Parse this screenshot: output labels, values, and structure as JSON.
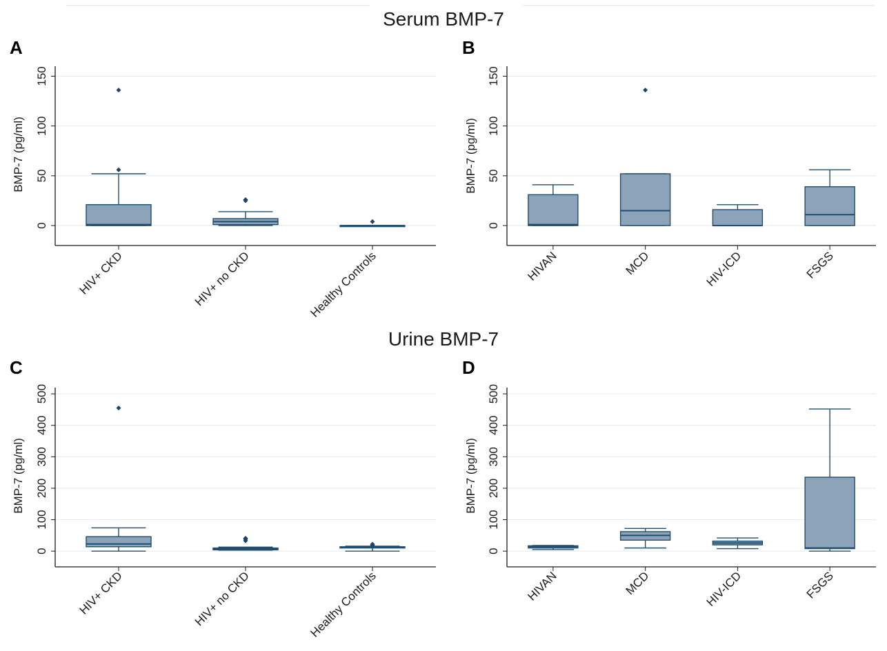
{
  "figure": {
    "section_titles": [
      "Serum BMP-7",
      "Urine BMP-7"
    ]
  },
  "chart_data": [
    {
      "panel": "A",
      "type": "box",
      "ylabel": "BMP-7  (pg/ml)",
      "ylim": [
        -20,
        160
      ],
      "yticks": [
        0,
        50,
        100,
        150
      ],
      "grid": true,
      "categories": [
        "HIV+ CKD",
        "HIV+ no CKD",
        "Healthy Controls"
      ],
      "boxes": [
        {
          "whisker_low": 0,
          "q1": 0,
          "median": 1,
          "q3": 21,
          "whisker_high": 52,
          "outliers": [
            56,
            136
          ]
        },
        {
          "whisker_low": 0,
          "q1": 1,
          "median": 4,
          "q3": 7,
          "whisker_high": 14,
          "outliers": [
            25,
            26
          ]
        },
        {
          "whisker_low": 0,
          "q1": 0,
          "median": 0,
          "q3": 0,
          "whisker_high": 0,
          "outliers": [
            4
          ]
        }
      ]
    },
    {
      "panel": "B",
      "type": "box",
      "ylabel": "BMP-7  (pg/ml)",
      "ylim": [
        -20,
        160
      ],
      "yticks": [
        0,
        50,
        100,
        150
      ],
      "grid": true,
      "categories": [
        "HIVAN",
        "MCD",
        "HIV-ICD",
        "FSGS"
      ],
      "boxes": [
        {
          "whisker_low": 0,
          "q1": 0,
          "median": 1,
          "q3": 31,
          "whisker_high": 41,
          "outliers": []
        },
        {
          "whisker_low": 0,
          "q1": 0,
          "median": 15,
          "q3": 52,
          "whisker_high": 52,
          "outliers": [
            136
          ]
        },
        {
          "whisker_low": 0,
          "q1": 0,
          "median": 0,
          "q3": 16,
          "whisker_high": 21,
          "outliers": []
        },
        {
          "whisker_low": 0,
          "q1": 0,
          "median": 11,
          "q3": 39,
          "whisker_high": 56,
          "outliers": []
        }
      ]
    },
    {
      "panel": "C",
      "type": "box",
      "ylabel": "BMP-7  (pg/ml)",
      "ylim": [
        -50,
        520
      ],
      "yticks": [
        0,
        100,
        200,
        300,
        400,
        500
      ],
      "grid": true,
      "categories": [
        "HIV+ CKD",
        "HIV+ no CKD",
        "Healthy Controls"
      ],
      "boxes": [
        {
          "whisker_low": 0,
          "q1": 14,
          "median": 23,
          "q3": 46,
          "whisker_high": 74,
          "outliers": [
            455
          ]
        },
        {
          "whisker_low": 3,
          "q1": 4,
          "median": 7,
          "q3": 10,
          "whisker_high": 13,
          "outliers": [
            33,
            38,
            41
          ]
        },
        {
          "whisker_low": 0,
          "q1": 10,
          "median": 12,
          "q3": 14,
          "whisker_high": 16,
          "outliers": [
            19,
            22
          ]
        }
      ]
    },
    {
      "panel": "D",
      "type": "box",
      "ylabel": "BMP-7  (pg/ml)",
      "ylim": [
        -50,
        520
      ],
      "yticks": [
        0,
        100,
        200,
        300,
        400,
        500
      ],
      "grid": true,
      "categories": [
        "HIVAN",
        "MCD",
        "HIV-ICD",
        "FSGS"
      ],
      "boxes": [
        {
          "whisker_low": 5,
          "q1": 10,
          "median": 14,
          "q3": 17,
          "whisker_high": 18,
          "outliers": []
        },
        {
          "whisker_low": 10,
          "q1": 35,
          "median": 50,
          "q3": 62,
          "whisker_high": 72,
          "outliers": []
        },
        {
          "whisker_low": 8,
          "q1": 20,
          "median": 26,
          "q3": 32,
          "whisker_high": 42,
          "outliers": []
        },
        {
          "whisker_low": 0,
          "q1": 8,
          "median": 10,
          "q3": 235,
          "whisker_high": 452,
          "outliers": []
        }
      ]
    }
  ]
}
